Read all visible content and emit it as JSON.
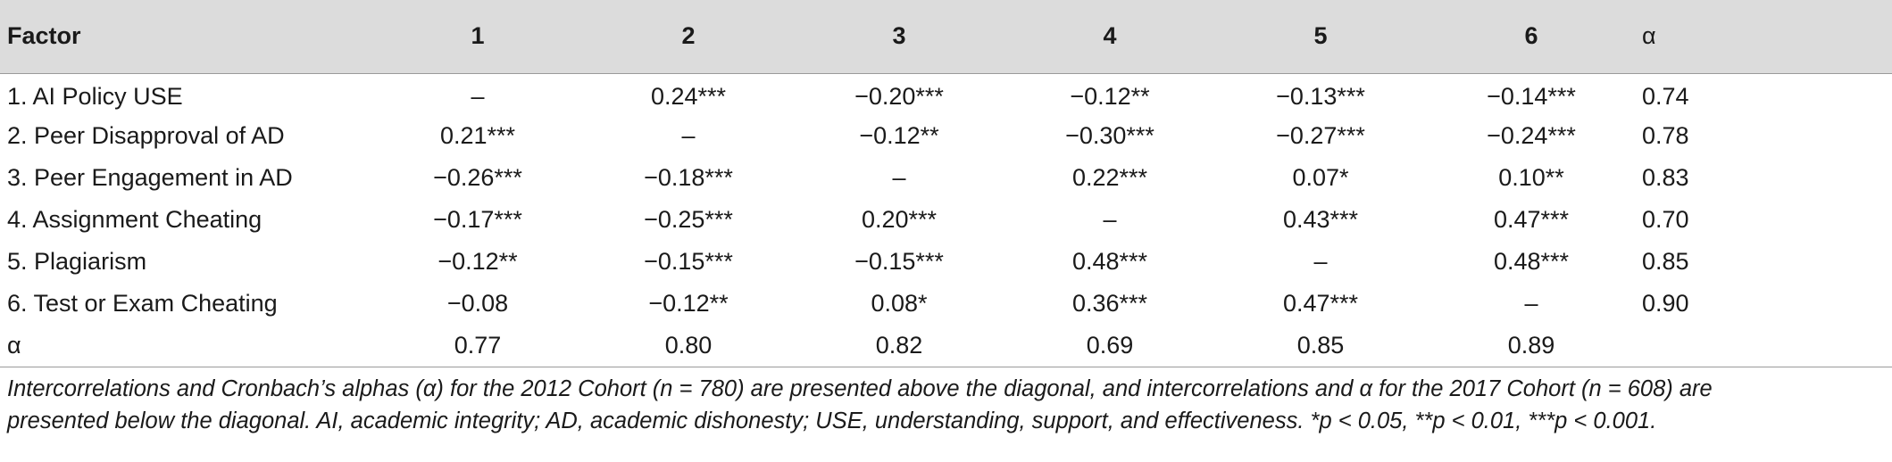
{
  "header": {
    "factor": "Factor",
    "cols": [
      "1",
      "2",
      "3",
      "4",
      "5",
      "6"
    ],
    "alpha": "α"
  },
  "rows": [
    {
      "label": "1. AI Policy USE",
      "values": [
        "–",
        "0.24***",
        "−0.20***",
        "−0.12**",
        "−0.13***",
        "−0.14***"
      ],
      "alpha": "0.74"
    },
    {
      "label": "2. Peer Disapproval of AD",
      "values": [
        "0.21***",
        "–",
        "−0.12**",
        "−0.30***",
        "−0.27***",
        "−0.24***"
      ],
      "alpha": "0.78"
    },
    {
      "label": "3. Peer Engagement in AD",
      "values": [
        "−0.26***",
        "−0.18***",
        "–",
        "0.22***",
        "0.07*",
        "0.10**"
      ],
      "alpha": "0.83"
    },
    {
      "label": "4. Assignment Cheating",
      "values": [
        "−0.17***",
        "−0.25***",
        "0.20***",
        "–",
        "0.43***",
        "0.47***"
      ],
      "alpha": "0.70"
    },
    {
      "label": "5. Plagiarism",
      "values": [
        "−0.12**",
        "−0.15***",
        "−0.15***",
        "0.48***",
        "–",
        "0.48***"
      ],
      "alpha": "0.85"
    },
    {
      "label": "6. Test or Exam Cheating",
      "values": [
        "−0.08",
        "−0.12**",
        "0.08*",
        "0.36***",
        "0.47***",
        "–"
      ],
      "alpha": "0.90"
    },
    {
      "label": "α",
      "values": [
        "0.77",
        "0.80",
        "0.82",
        "0.69",
        "0.85",
        "0.89"
      ],
      "alpha": ""
    }
  ],
  "note": {
    "line1": "Intercorrelations and Cronbach’s alphas (α) for the 2012 Cohort (n = 780) are presented above the diagonal, and intercorrelations and α for the 2017 Cohort (n = 608) are",
    "line2": "presented below the diagonal. AI, academic integrity; AD, academic dishonesty; USE, understanding, support, and effectiveness. *p < 0.05, **p < 0.01, ***p < 0.001."
  }
}
